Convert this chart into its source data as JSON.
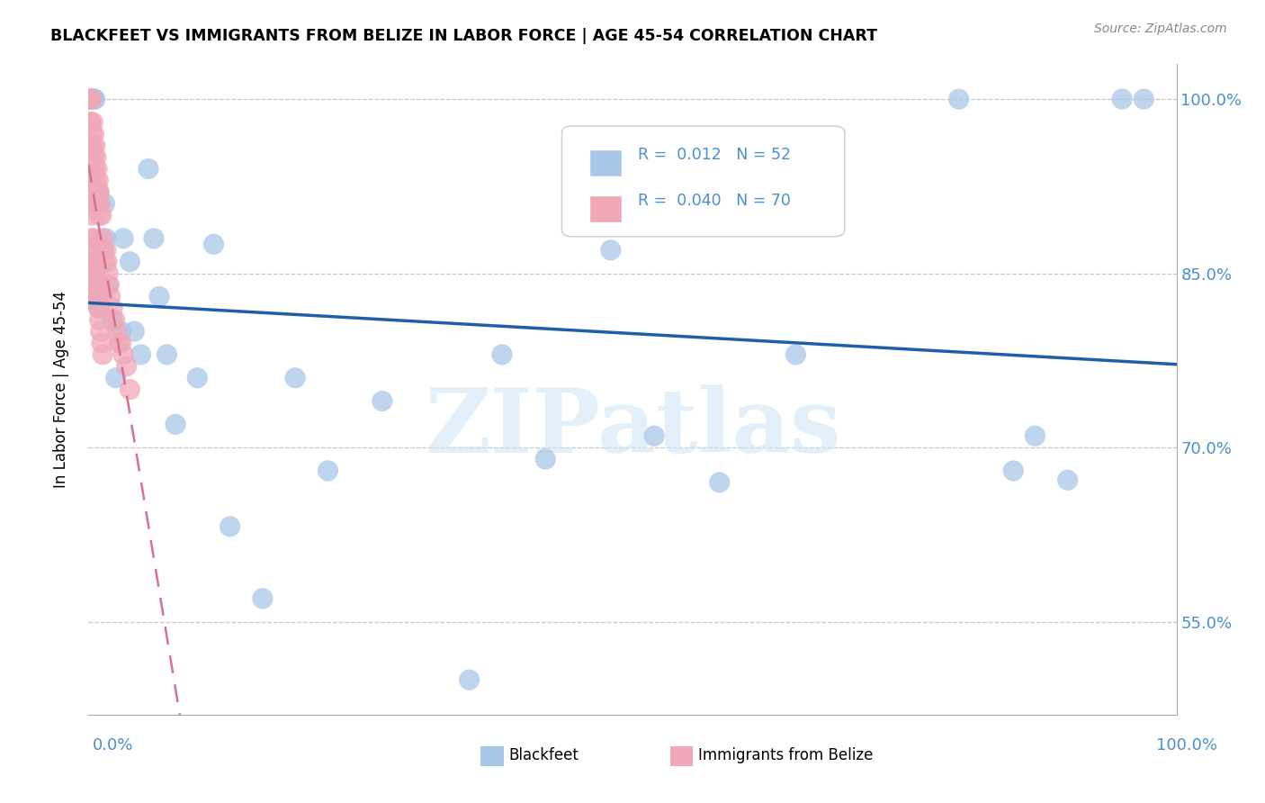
{
  "title": "BLACKFEET VS IMMIGRANTS FROM BELIZE IN LABOR FORCE | AGE 45-54 CORRELATION CHART",
  "source": "Source: ZipAtlas.com",
  "ylabel": "In Labor Force | Age 45-54",
  "watermark": "ZIPatlas",
  "legend_blue_r": "0.012",
  "legend_blue_n": "52",
  "legend_pink_r": "0.040",
  "legend_pink_n": "70",
  "legend_label_blue": "Blackfeet",
  "legend_label_pink": "Immigrants from Belize",
  "blue_color": "#a8c8e8",
  "pink_color": "#f0a8b8",
  "blue_line_color": "#1f5faa",
  "pink_line_color": "#d87090",
  "axis_label_color": "#4a8fd4",
  "blue_x": [
    0.003,
    0.004,
    0.005,
    0.006,
    0.006,
    0.007,
    0.008,
    0.008,
    0.009,
    0.01,
    0.012,
    0.013,
    0.015,
    0.016,
    0.018,
    0.022,
    0.025,
    0.03,
    0.032,
    0.038,
    0.042,
    0.048,
    0.055,
    0.06,
    0.065,
    0.072,
    0.08,
    0.1,
    0.115,
    0.13,
    0.16,
    0.19,
    0.22,
    0.27,
    0.35,
    0.38,
    0.42,
    0.48,
    0.52,
    0.58,
    0.65,
    0.8,
    0.85,
    0.87,
    0.9,
    0.95,
    0.97,
    0.002,
    0.003,
    0.004,
    0.007,
    0.01
  ],
  "blue_y": [
    0.854,
    0.838,
    1.0,
    1.0,
    0.826,
    0.855,
    0.874,
    0.86,
    0.92,
    0.82,
    0.872,
    0.832,
    0.91,
    0.88,
    0.84,
    0.81,
    0.76,
    0.8,
    0.88,
    0.86,
    0.8,
    0.78,
    0.94,
    0.88,
    0.83,
    0.78,
    0.72,
    0.76,
    0.875,
    0.632,
    0.57,
    0.76,
    0.68,
    0.74,
    0.5,
    0.78,
    0.69,
    0.87,
    0.71,
    0.67,
    0.78,
    1.0,
    0.68,
    0.71,
    0.672,
    1.0,
    1.0,
    0.847,
    0.845,
    0.843,
    0.841,
    0.839
  ],
  "pink_x": [
    0.001,
    0.001,
    0.001,
    0.001,
    0.002,
    0.002,
    0.002,
    0.002,
    0.003,
    0.003,
    0.003,
    0.003,
    0.003,
    0.004,
    0.004,
    0.004,
    0.004,
    0.005,
    0.005,
    0.005,
    0.005,
    0.006,
    0.006,
    0.006,
    0.007,
    0.007,
    0.008,
    0.008,
    0.009,
    0.009,
    0.01,
    0.01,
    0.011,
    0.012,
    0.013,
    0.014,
    0.015,
    0.016,
    0.017,
    0.018,
    0.019,
    0.02,
    0.022,
    0.024,
    0.026,
    0.028,
    0.03,
    0.032,
    0.035,
    0.038,
    0.002,
    0.003,
    0.004,
    0.005,
    0.006,
    0.007,
    0.008,
    0.009,
    0.01,
    0.011,
    0.012,
    0.013,
    0.003,
    0.004,
    0.005,
    0.006,
    0.007,
    0.008,
    0.003,
    0.004
  ],
  "pink_y": [
    1.0,
    1.0,
    0.98,
    0.96,
    1.0,
    0.98,
    0.96,
    0.94,
    1.0,
    0.97,
    0.95,
    0.93,
    0.91,
    0.98,
    0.96,
    0.94,
    0.92,
    0.97,
    0.95,
    0.93,
    0.91,
    0.96,
    0.94,
    0.92,
    0.95,
    0.93,
    0.94,
    0.92,
    0.93,
    0.91,
    0.92,
    0.9,
    0.91,
    0.9,
    0.88,
    0.87,
    0.86,
    0.87,
    0.86,
    0.85,
    0.84,
    0.83,
    0.82,
    0.81,
    0.8,
    0.79,
    0.79,
    0.78,
    0.77,
    0.75,
    0.92,
    0.9,
    0.88,
    0.86,
    0.85,
    0.84,
    0.83,
    0.82,
    0.81,
    0.8,
    0.79,
    0.78,
    0.88,
    0.87,
    0.86,
    0.85,
    0.84,
    0.83,
    0.86,
    0.85
  ],
  "xmin": 0.0,
  "xmax": 1.0,
  "ymin": 0.47,
  "ymax": 1.03,
  "yticks": [
    0.55,
    0.7,
    0.85,
    1.0
  ],
  "ytick_labels": [
    "55.0%",
    "70.0%",
    "85.0%",
    "100.0%"
  ]
}
